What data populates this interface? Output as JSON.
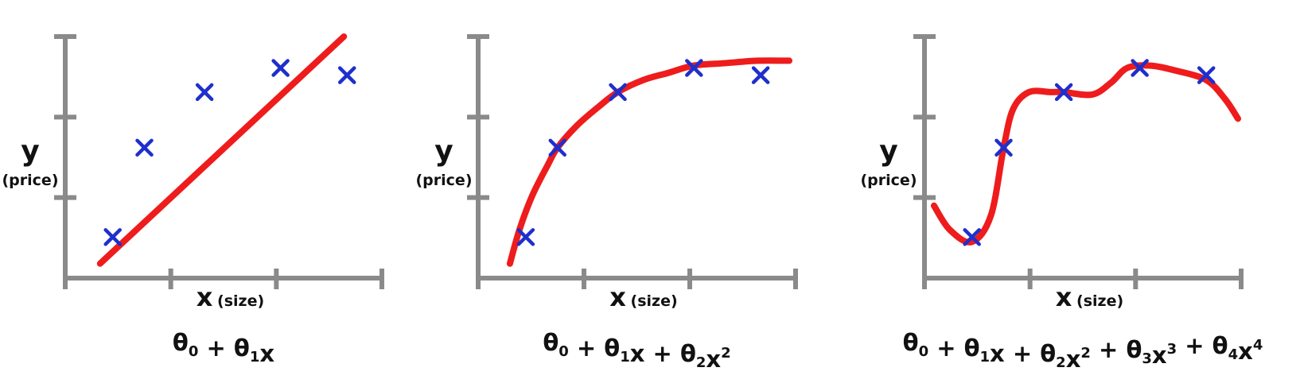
{
  "colors": {
    "axis": "#8a8a8a",
    "curve": "#ee1c1c",
    "marker": "#1f2fcc",
    "text": "#111111"
  },
  "chart_data": [
    {
      "type": "scatter",
      "title": "",
      "xlabel": "x",
      "xlabel_note": "(size)",
      "ylabel": "y",
      "ylabel_note": "(price)",
      "x_ticks": 3,
      "y_ticks": 2,
      "grid": false,
      "points": [
        [
          0.15,
          0.17
        ],
        [
          0.25,
          0.54
        ],
        [
          0.44,
          0.77
        ],
        [
          0.68,
          0.87
        ],
        [
          0.89,
          0.84
        ]
      ],
      "fit_curve": [
        [
          0.11,
          0.06
        ],
        [
          0.88,
          1.0
        ]
      ],
      "formula": [
        {
          "t": "θ"
        },
        {
          "t": "0",
          "s": "sub"
        },
        {
          "t": " + θ"
        },
        {
          "t": "1",
          "s": "sub"
        },
        {
          "t": "x"
        }
      ]
    },
    {
      "type": "scatter",
      "title": "",
      "xlabel": "x",
      "xlabel_note": "(size)",
      "ylabel": "y",
      "ylabel_note": "(price)",
      "x_ticks": 3,
      "y_ticks": 2,
      "grid": false,
      "points": [
        [
          0.15,
          0.17
        ],
        [
          0.25,
          0.54
        ],
        [
          0.44,
          0.77
        ],
        [
          0.68,
          0.87
        ],
        [
          0.89,
          0.84
        ]
      ],
      "fit_curve": [
        [
          0.1,
          0.06
        ],
        [
          0.13,
          0.2
        ],
        [
          0.17,
          0.34
        ],
        [
          0.22,
          0.47
        ],
        [
          0.25,
          0.54
        ],
        [
          0.31,
          0.63
        ],
        [
          0.38,
          0.71
        ],
        [
          0.44,
          0.77
        ],
        [
          0.52,
          0.82
        ],
        [
          0.6,
          0.85
        ],
        [
          0.68,
          0.88
        ],
        [
          0.78,
          0.89
        ],
        [
          0.88,
          0.9
        ],
        [
          0.98,
          0.9
        ]
      ],
      "formula": [
        {
          "t": "θ"
        },
        {
          "t": "0",
          "s": "sub"
        },
        {
          "t": " + θ"
        },
        {
          "t": "1",
          "s": "sub"
        },
        {
          "t": "x + θ"
        },
        {
          "t": "2",
          "s": "sub"
        },
        {
          "t": "x"
        },
        {
          "t": "2",
          "s": "sup"
        }
      ]
    },
    {
      "type": "scatter",
      "title": "",
      "xlabel": "x",
      "xlabel_note": "(size)",
      "ylabel": "y",
      "ylabel_note": "(price)",
      "x_ticks": 3,
      "y_ticks": 2,
      "grid": false,
      "points": [
        [
          0.15,
          0.17
        ],
        [
          0.25,
          0.54
        ],
        [
          0.44,
          0.77
        ],
        [
          0.68,
          0.87
        ],
        [
          0.89,
          0.84
        ]
      ],
      "fit_curve": [
        [
          0.03,
          0.3
        ],
        [
          0.08,
          0.2
        ],
        [
          0.15,
          0.15
        ],
        [
          0.21,
          0.26
        ],
        [
          0.25,
          0.54
        ],
        [
          0.28,
          0.7
        ],
        [
          0.33,
          0.77
        ],
        [
          0.4,
          0.77
        ],
        [
          0.44,
          0.77
        ],
        [
          0.53,
          0.76
        ],
        [
          0.59,
          0.81
        ],
        [
          0.64,
          0.87
        ],
        [
          0.71,
          0.88
        ],
        [
          0.79,
          0.86
        ],
        [
          0.89,
          0.82
        ],
        [
          0.95,
          0.74
        ],
        [
          0.99,
          0.66
        ]
      ],
      "formula": [
        {
          "t": "θ"
        },
        {
          "t": "0",
          "s": "sub"
        },
        {
          "t": " + θ"
        },
        {
          "t": "1",
          "s": "sub"
        },
        {
          "t": "x + θ"
        },
        {
          "t": "2",
          "s": "sub"
        },
        {
          "t": "x"
        },
        {
          "t": "2",
          "s": "sup"
        },
        {
          "t": " + θ"
        },
        {
          "t": "3",
          "s": "sub"
        },
        {
          "t": "x"
        },
        {
          "t": "3",
          "s": "sup"
        },
        {
          "t": " + θ"
        },
        {
          "t": "4",
          "s": "sub"
        },
        {
          "t": "x"
        },
        {
          "t": "4",
          "s": "sup"
        }
      ]
    }
  ]
}
